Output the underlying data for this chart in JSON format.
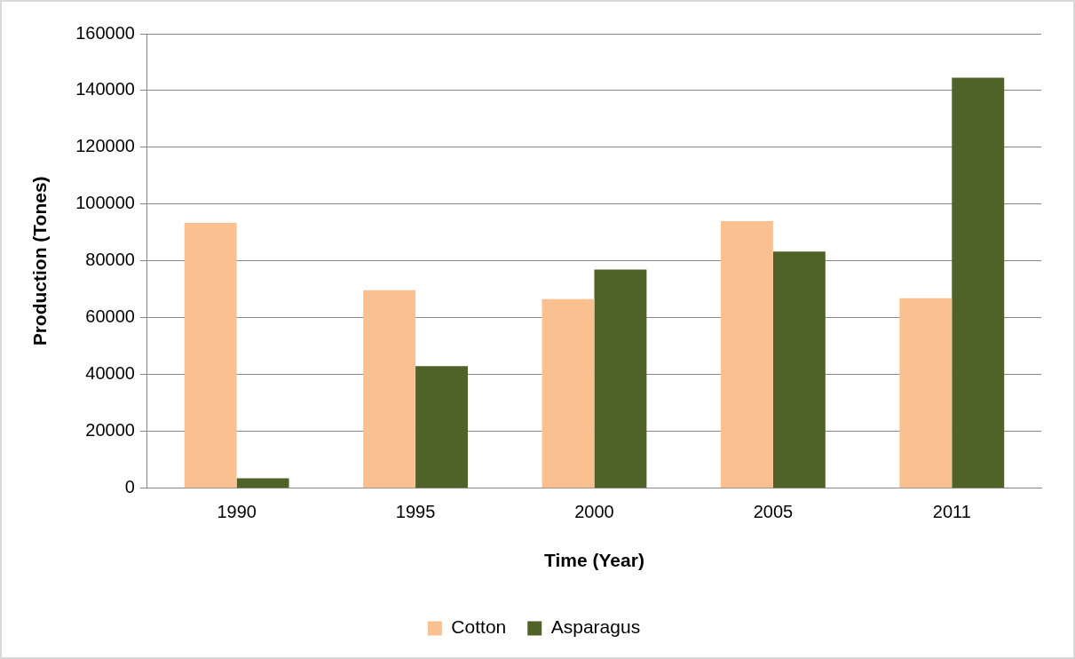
{
  "chart_data": {
    "type": "bar",
    "xlabel": "Time (Year)",
    "ylabel": "Production (Tones)",
    "categories": [
      "1990",
      "1995",
      "2000",
      "2005",
      "2011"
    ],
    "series": [
      {
        "name": "Cotton",
        "color": "#fac090",
        "values": [
          93400,
          69700,
          66600,
          94000,
          66900
        ]
      },
      {
        "name": "Asparagus",
        "color": "#4f6228",
        "values": [
          3500,
          43000,
          77000,
          83300,
          144500
        ]
      }
    ],
    "ylim": [
      0,
      160000
    ],
    "yticks": [
      0,
      20000,
      40000,
      60000,
      80000,
      100000,
      120000,
      140000,
      160000
    ],
    "grid": "y",
    "legend": "bottom"
  }
}
